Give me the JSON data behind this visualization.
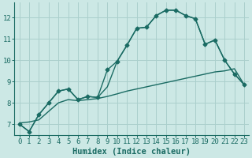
{
  "xlabel": "Humidex (Indice chaleur)",
  "background_color": "#cce8e5",
  "grid_color": "#aacfcc",
  "line_color": "#1a6b63",
  "spine_color": "#1a6b63",
  "xlim": [
    -0.5,
    23.5
  ],
  "ylim": [
    6.5,
    12.7
  ],
  "xticks": [
    0,
    1,
    2,
    3,
    4,
    5,
    6,
    7,
    8,
    9,
    10,
    11,
    12,
    13,
    14,
    15,
    16,
    17,
    18,
    19,
    20,
    21,
    22,
    23
  ],
  "yticks": [
    7,
    8,
    9,
    10,
    11,
    12
  ],
  "line1_x": [
    0,
    1,
    2,
    3,
    4,
    5,
    6,
    7,
    8,
    9,
    10,
    11,
    12,
    13,
    14,
    15,
    16,
    17,
    18,
    19,
    20,
    21,
    22,
    23
  ],
  "line1_y": [
    7.0,
    6.65,
    7.45,
    8.0,
    8.55,
    8.65,
    8.15,
    8.3,
    8.25,
    9.55,
    9.95,
    10.7,
    11.5,
    11.55,
    12.1,
    12.35,
    12.35,
    12.1,
    11.95,
    10.75,
    10.95,
    10.0,
    9.35,
    8.85
  ],
  "line2_x": [
    0,
    1,
    2,
    3,
    4,
    5,
    6,
    7,
    8,
    9,
    10,
    11,
    12,
    13,
    14,
    15,
    16,
    17,
    18,
    19,
    20,
    21,
    22,
    23
  ],
  "line2_y": [
    7.05,
    7.1,
    7.2,
    7.6,
    8.0,
    8.15,
    8.1,
    8.15,
    8.2,
    8.3,
    8.42,
    8.55,
    8.65,
    8.75,
    8.85,
    8.95,
    9.05,
    9.15,
    9.25,
    9.35,
    9.45,
    9.5,
    9.6,
    8.85
  ],
  "line3_x": [
    0,
    1,
    2,
    3,
    4,
    5,
    6,
    7,
    8,
    9,
    10,
    11,
    12,
    13,
    14,
    15,
    16,
    17,
    18,
    19,
    20,
    21,
    22,
    23
  ],
  "line3_y": [
    7.0,
    6.65,
    7.45,
    8.0,
    8.55,
    8.65,
    8.15,
    8.3,
    8.25,
    8.75,
    9.95,
    10.7,
    11.5,
    11.55,
    12.1,
    12.35,
    12.35,
    12.1,
    11.95,
    10.75,
    10.95,
    10.0,
    9.35,
    8.85
  ],
  "marker_style": "D",
  "marker_size": 2.5,
  "linewidth": 1.0,
  "tick_labelsize": 6.5,
  "xlabel_fontsize": 7.5
}
